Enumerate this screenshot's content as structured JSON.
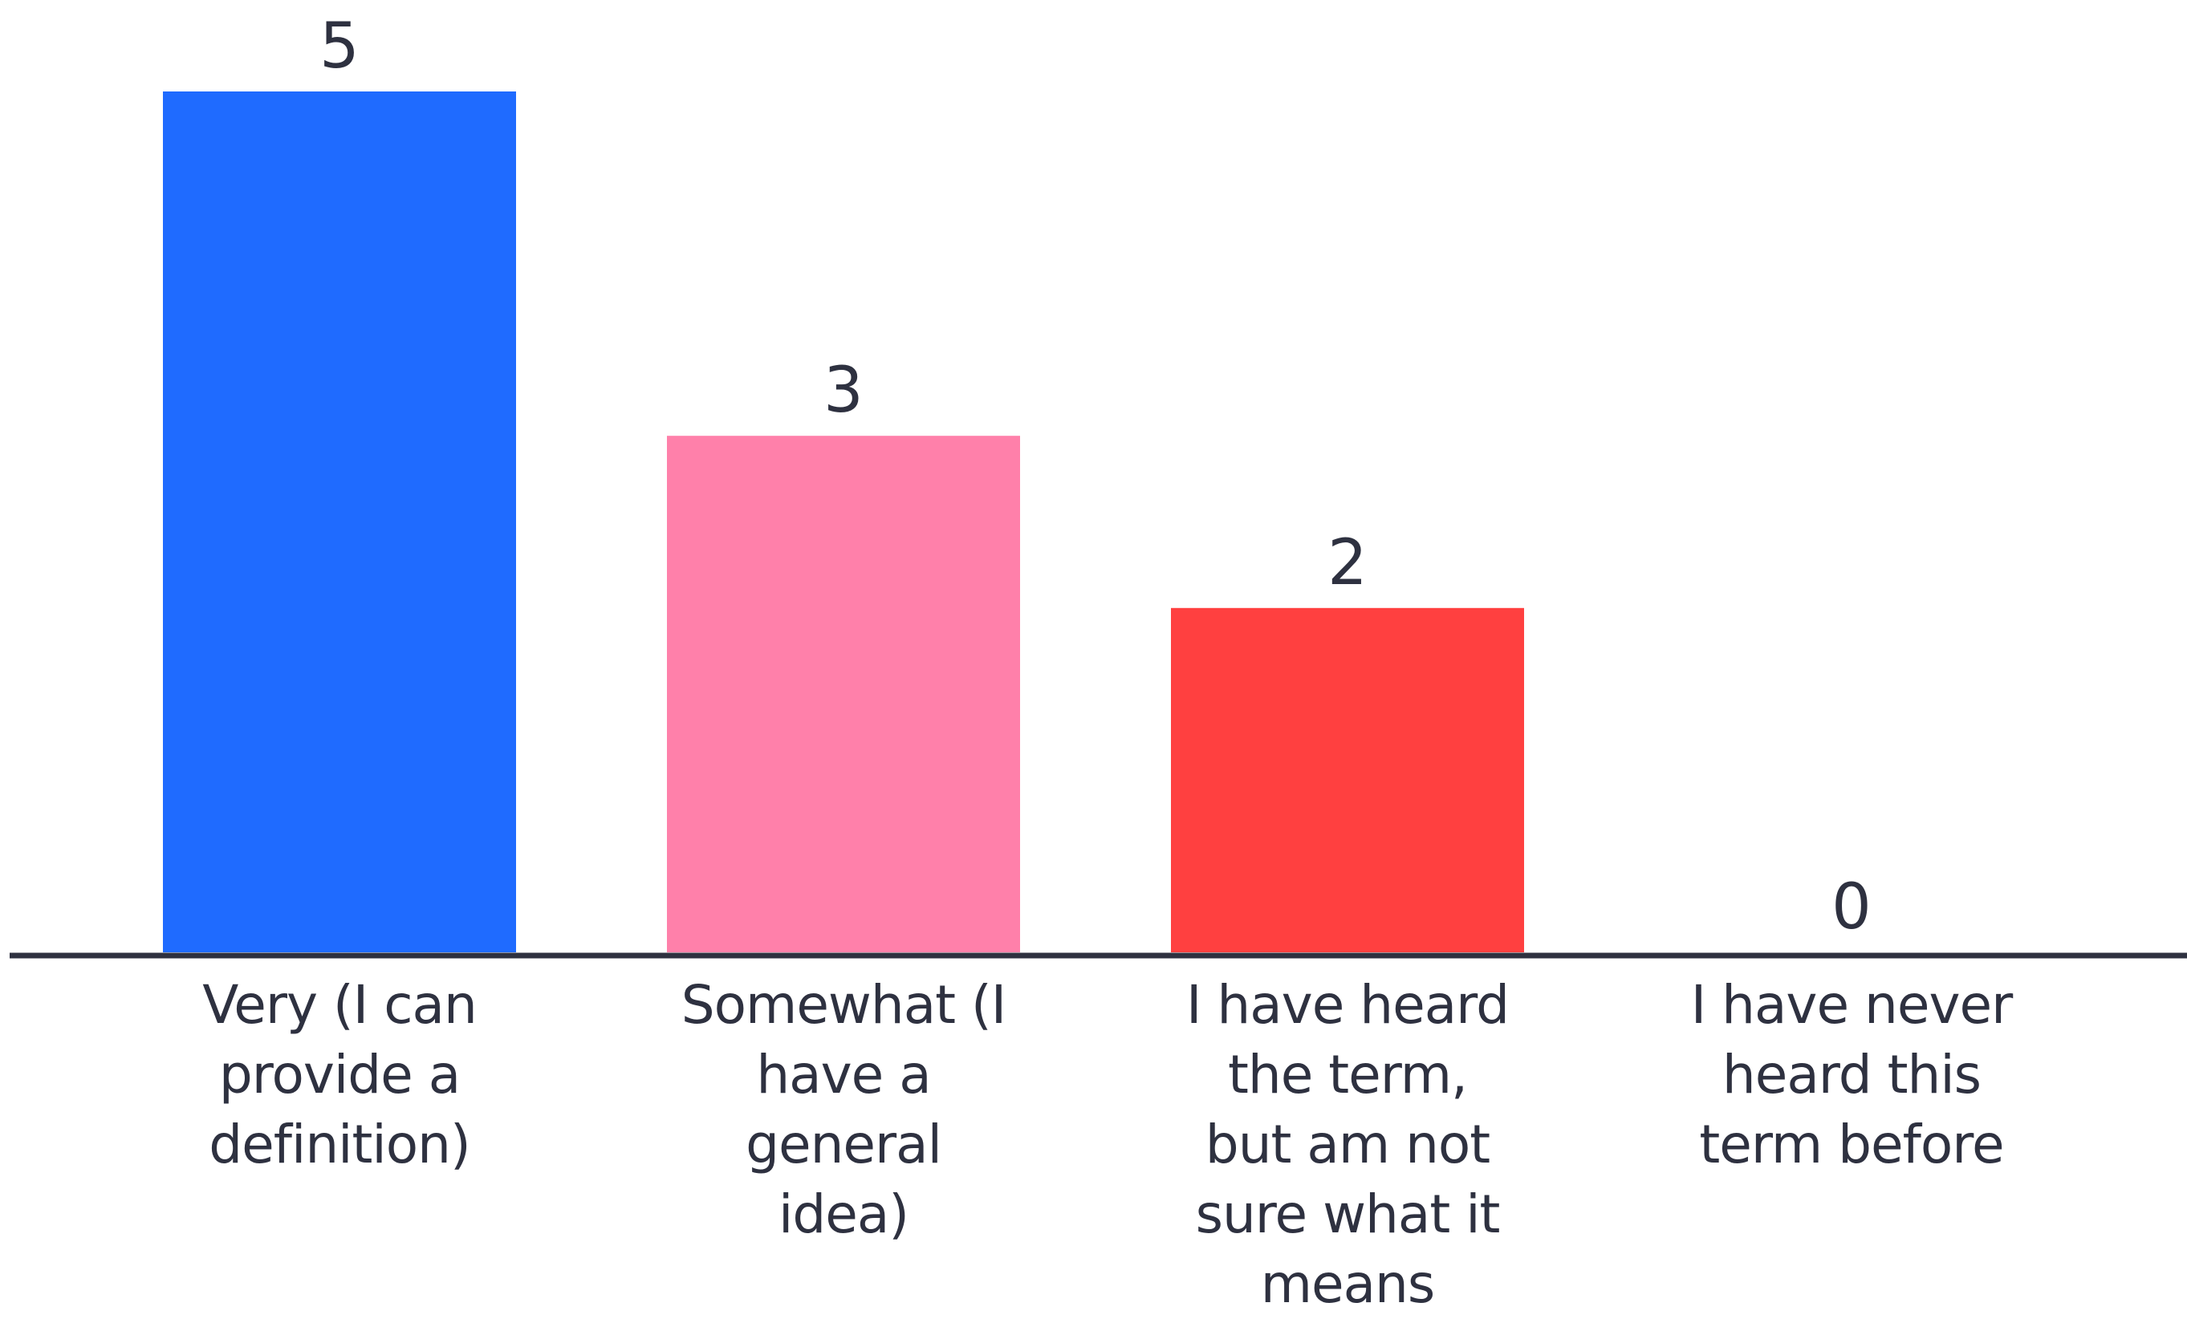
{
  "chart_data": {
    "type": "bar",
    "categories": [
      "Very (I can provide a definition)",
      "Somewhat (I have a general idea)",
      "I have heard the term, but am not sure what it means",
      "I have never heard this term before"
    ],
    "values": [
      5,
      3,
      2,
      0
    ],
    "colors": [
      "#1f6bff",
      "#ff80aa",
      "#ff4040",
      "#cccccc"
    ],
    "title": "",
    "xlabel": "",
    "ylabel": "",
    "ylim": [
      0,
      5
    ],
    "grid": false,
    "legend": "none",
    "axis_color": "#2e3140"
  },
  "category_lines": [
    [
      "Very (I can",
      "provide a",
      "definition)"
    ],
    [
      "Somewhat (I",
      "have a",
      "general",
      "idea)"
    ],
    [
      "I have heard",
      "the term,",
      "but am not",
      "sure what it",
      "means"
    ],
    [
      "I have never",
      "heard this",
      "term before"
    ]
  ]
}
